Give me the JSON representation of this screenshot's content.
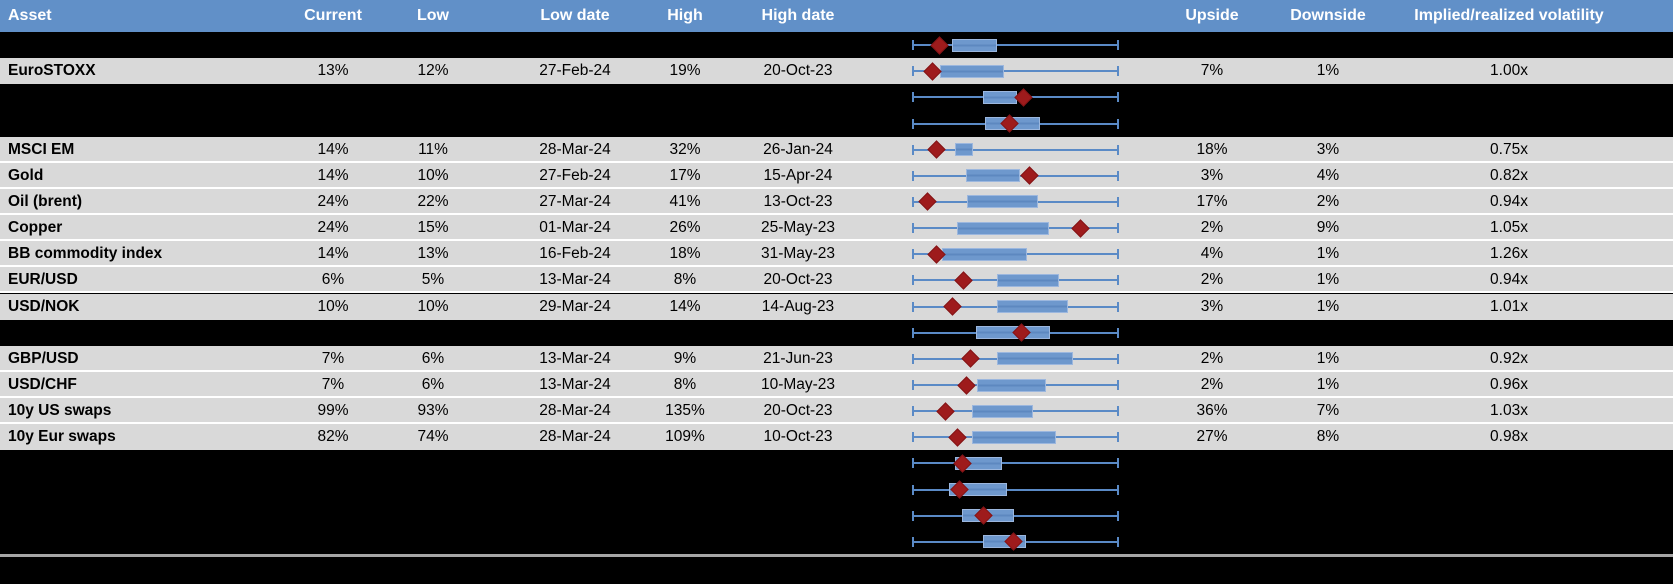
{
  "header": {
    "labels": {
      "asset": "Asset",
      "current": "Current",
      "low": "Low",
      "low_date": "Low date",
      "high": "High",
      "high_date": "High date",
      "upside": "Upside",
      "downside": "Downside",
      "impl_real": "Implied/realized volatility"
    }
  },
  "colors": {
    "header_bg": "#6190c8",
    "data_row_bg": "#d9d9d9",
    "hidden_row_bg": "#000000",
    "whisker_blue": "#5a8ac6",
    "box_blue": "#6e98cd",
    "box_border": "#9cb7de",
    "marker_red": "#9e1b1c",
    "divider_gray": "#a6a6a6"
  },
  "chart_data": {
    "type": "boxplot",
    "orientation": "horizontal",
    "description": "Per-row box-and-whisker of implied volatility range (low to high) with red diamond marking current level; whiskers span the full normalized range, box and marker positions are normalized 0-1 between each asset's low and high.",
    "axis": {
      "range": [
        0,
        1
      ],
      "whisker_lo": 0,
      "whisker_hi": 1
    },
    "legend": null,
    "rows": [
      {
        "hidden": true,
        "box": [
          0.191,
          0.411
        ],
        "marker": 0.132
      },
      {
        "hidden": false,
        "asset": "EuroSTOXX",
        "current": "13%",
        "low": "12%",
        "low_date": "27-Feb-24",
        "high": "19%",
        "high_date": "20-Oct-23",
        "upside": "7%",
        "downside": "1%",
        "impl_real": "1.00x",
        "box": [
          0.132,
          0.445
        ],
        "marker": 0.093
      },
      {
        "hidden": true,
        "box": [
          0.342,
          0.509
        ],
        "marker": 0.538
      },
      {
        "hidden": true,
        "box": [
          0.352,
          0.621
        ],
        "marker": 0.474
      },
      {
        "hidden": false,
        "asset": "MSCI EM",
        "current": "14%",
        "low": "11%",
        "low_date": "28-Mar-24",
        "high": "32%",
        "high_date": "26-Jan-24",
        "upside": "18%",
        "downside": "3%",
        "impl_real": "0.75x",
        "box": [
          0.205,
          0.293
        ],
        "marker": 0.117
      },
      {
        "hidden": false,
        "asset": "Gold",
        "current": "14%",
        "low": "10%",
        "low_date": "27-Feb-24",
        "high": "17%",
        "high_date": "15-Apr-24",
        "upside": "3%",
        "downside": "4%",
        "impl_real": "0.82x",
        "box": [
          0.259,
          0.523
        ],
        "marker": 0.572
      },
      {
        "hidden": false,
        "asset": "Oil (brent)",
        "current": "24%",
        "low": "22%",
        "low_date": "27-Mar-24",
        "high": "41%",
        "high_date": "13-Oct-23",
        "upside": "17%",
        "downside": "2%",
        "impl_real": "0.94x",
        "box": [
          0.264,
          0.611
        ],
        "marker": 0.073
      },
      {
        "hidden": false,
        "asset": "Copper",
        "current": "24%",
        "low": "15%",
        "low_date": "01-Mar-24",
        "high": "26%",
        "high_date": "25-May-23",
        "upside": "2%",
        "downside": "9%",
        "impl_real": "1.05x",
        "box": [
          0.215,
          0.665
        ],
        "marker": 0.821
      },
      {
        "hidden": false,
        "asset": "BB commodity index",
        "current": "14%",
        "low": "13%",
        "low_date": "16-Feb-24",
        "high": "18%",
        "high_date": "31-May-23",
        "upside": "4%",
        "downside": "1%",
        "impl_real": "1.26x",
        "box": [
          0.142,
          0.557
        ],
        "marker": 0.117
      },
      {
        "hidden": false,
        "asset": "EUR/USD",
        "current": "6%",
        "low": "5%",
        "low_date": "13-Mar-24",
        "high": "8%",
        "high_date": "20-Oct-23",
        "upside": "2%",
        "downside": "1%",
        "impl_real": "0.94x",
        "box": [
          0.411,
          0.714
        ],
        "marker": 0.245
      },
      {
        "hidden": false,
        "asset": "USD/NOK",
        "current": "10%",
        "low": "10%",
        "low_date": "29-Mar-24",
        "high": "14%",
        "high_date": "14-Aug-23",
        "upside": "3%",
        "downside": "1%",
        "impl_real": "1.01x",
        "box": [
          0.411,
          0.758
        ],
        "marker": 0.191
      },
      {
        "hidden": true,
        "box": [
          0.308,
          0.67
        ],
        "marker": 0.533
      },
      {
        "hidden": false,
        "asset": "GBP/USD",
        "current": "7%",
        "low": "6%",
        "low_date": "13-Mar-24",
        "high": "9%",
        "high_date": "21-Jun-23",
        "upside": "2%",
        "downside": "1%",
        "impl_real": "0.92x",
        "box": [
          0.411,
          0.782
        ],
        "marker": 0.279
      },
      {
        "hidden": false,
        "asset": "USD/CHF",
        "current": "7%",
        "low": "6%",
        "low_date": "13-Mar-24",
        "high": "8%",
        "high_date": "10-May-23",
        "upside": "2%",
        "downside": "1%",
        "impl_real": "0.96x",
        "box": [
          0.313,
          0.65
        ],
        "marker": 0.264
      },
      {
        "hidden": false,
        "asset": "10y US swaps",
        "current": "99%",
        "low": "93%",
        "low_date": "28-Mar-24",
        "high": "135%",
        "high_date": "20-Oct-23",
        "upside": "36%",
        "downside": "7%",
        "impl_real": "1.03x",
        "box": [
          0.289,
          0.587
        ],
        "marker": 0.161
      },
      {
        "hidden": false,
        "asset": "10y Eur swaps",
        "current": "82%",
        "low": "74%",
        "low_date": "28-Mar-24",
        "high": "109%",
        "high_date": "10-Oct-23",
        "upside": "27%",
        "downside": "8%",
        "impl_real": "0.98x",
        "box": [
          0.289,
          0.699
        ],
        "marker": 0.22
      },
      {
        "hidden": true,
        "box": [
          0.205,
          0.435
        ],
        "marker": 0.24
      },
      {
        "hidden": true,
        "box": [
          0.176,
          0.46
        ],
        "marker": 0.225
      },
      {
        "hidden": true,
        "box": [
          0.24,
          0.494
        ],
        "marker": 0.347
      },
      {
        "hidden": true,
        "box": [
          0.342,
          0.553
        ],
        "marker": 0.489
      }
    ]
  }
}
